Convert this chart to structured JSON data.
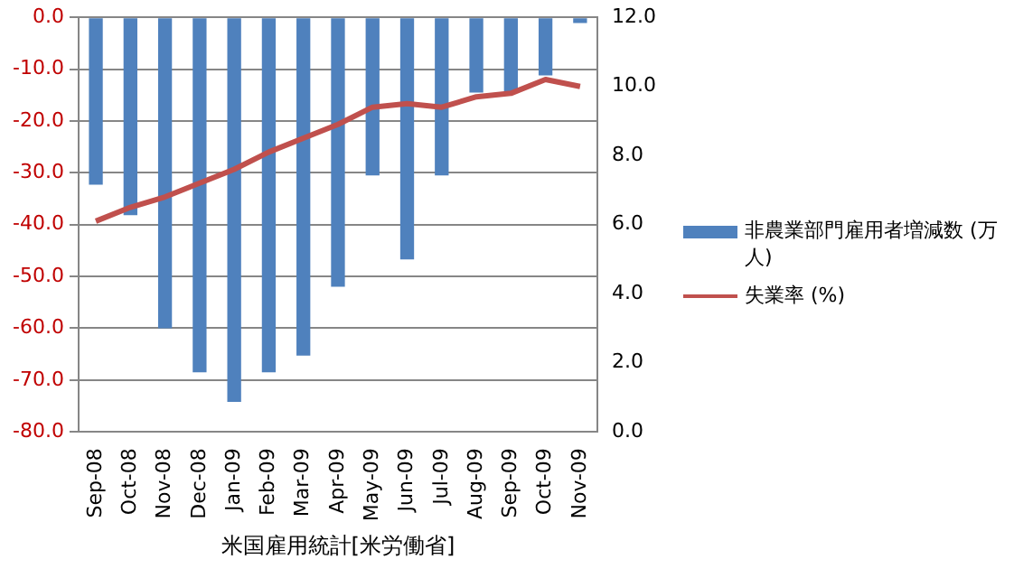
{
  "chart_data": {
    "type": "bar",
    "xlabel": "米国雇用統計[米労働省]",
    "categories": [
      "Sep-08",
      "Oct-08",
      "Nov-08",
      "Dec-08",
      "Jan-09",
      "Feb-09",
      "Mar-09",
      "Apr-09",
      "May-09",
      "Jun-09",
      "Jul-09",
      "Aug-09",
      "Sep-09",
      "Oct-09",
      "Nov-09"
    ],
    "series": [
      {
        "name": "非農業部門雇用者増減数 (万人)",
        "color": "#4f81bd",
        "values": [
          -32.3,
          -38.2,
          -60.0,
          -68.5,
          -74.2,
          -68.5,
          -65.3,
          -52.0,
          -30.5,
          -46.7,
          -30.5,
          -14.5,
          -14.3,
          -11.2,
          -1.1
        ]
      },
      {
        "name": "失業率 (%)",
        "type": "line",
        "axis": "y2",
        "color": "#c0504d",
        "values": [
          6.1,
          6.5,
          6.8,
          7.2,
          7.6,
          8.1,
          8.5,
          8.9,
          9.4,
          9.5,
          9.4,
          9.7,
          9.8,
          10.2,
          10.0
        ]
      }
    ],
    "ylim": [
      -80,
      0
    ],
    "yticks": [
      {
        "value": -80,
        "label": "-80.0"
      },
      {
        "value": -70,
        "label": "-70.0"
      },
      {
        "value": -60,
        "label": "-60.0"
      },
      {
        "value": -50,
        "label": "-50.0"
      },
      {
        "value": -40,
        "label": "-40.0"
      },
      {
        "value": -30,
        "label": "-30.0"
      },
      {
        "value": -20,
        "label": "-20.0"
      },
      {
        "value": -10,
        "label": "-10.0"
      },
      {
        "value": 0,
        "label": "0.0"
      }
    ],
    "y2lim": [
      0,
      12
    ],
    "y2ticks": [
      {
        "value": 0,
        "label": "0.0"
      },
      {
        "value": 2,
        "label": "2.0"
      },
      {
        "value": 4,
        "label": "4.0"
      },
      {
        "value": 6,
        "label": "6.0"
      },
      {
        "value": 8,
        "label": "8.0"
      },
      {
        "value": 10,
        "label": "10.0"
      },
      {
        "value": 12,
        "label": "12.0"
      }
    ],
    "grid": "y",
    "legend": "right",
    "marker": "none"
  }
}
